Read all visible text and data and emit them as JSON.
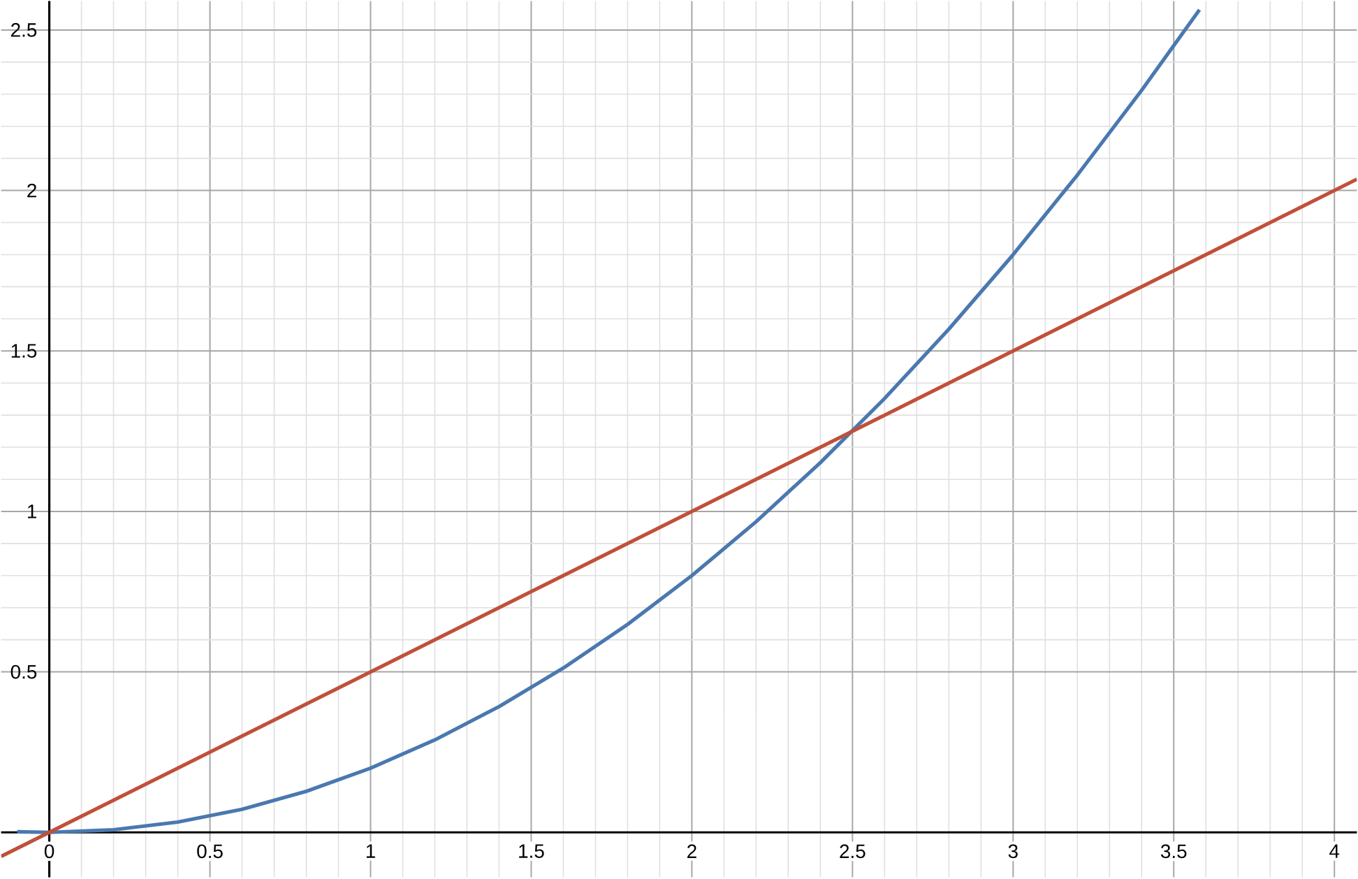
{
  "chart_data": {
    "type": "line",
    "xlim": [
      -0.15,
      4.07
    ],
    "ylim": [
      -0.14,
      2.59
    ],
    "xticks": [
      0,
      0.5,
      1,
      1.5,
      2,
      2.5,
      3,
      3.5,
      4
    ],
    "yticks": [
      0.5,
      1,
      1.5,
      2,
      2.5
    ],
    "grid": true,
    "marker": "none",
    "line_style": "solid",
    "series": [
      {
        "color": "#4a78b0",
        "x": [
          -0.1,
          0,
          0.2,
          0.4,
          0.6,
          0.8,
          1,
          1.2,
          1.4,
          1.6,
          1.8,
          2,
          2.2,
          2.4,
          2.6,
          2.8,
          3,
          3.2,
          3.4,
          3.58
        ],
        "values": [
          0.002,
          0,
          0.008,
          0.032,
          0.072,
          0.128,
          0.2,
          0.288,
          0.392,
          0.512,
          0.648,
          0.8,
          0.968,
          1.152,
          1.352,
          1.568,
          1.8,
          2.048,
          2.312,
          2.563
        ]
      },
      {
        "color": "#c0503a",
        "x": [
          -0.15,
          4.07
        ],
        "values": [
          -0.075,
          2.035
        ]
      }
    ]
  }
}
